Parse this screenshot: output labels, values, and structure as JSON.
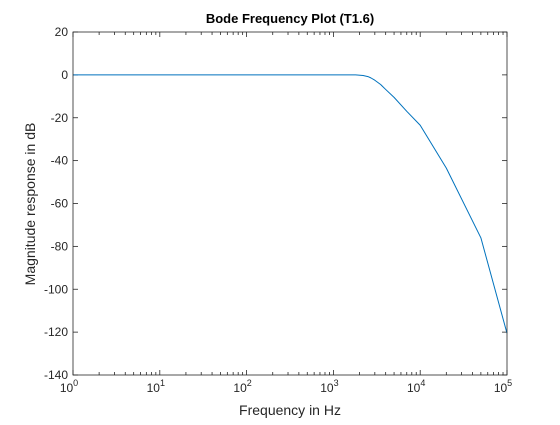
{
  "chart_data": {
    "type": "line",
    "title": "Bode Frequency Plot (T1.6)",
    "xlabel": "Frequency in Hz",
    "ylabel": "Magnitude response in dB",
    "xscale": "log",
    "xlim": [
      1,
      100000
    ],
    "ylim": [
      -140,
      20
    ],
    "x_ticks": [
      {
        "value": 1,
        "base": "10",
        "exp": "0"
      },
      {
        "value": 10,
        "base": "10",
        "exp": "1"
      },
      {
        "value": 100,
        "base": "10",
        "exp": "2"
      },
      {
        "value": 1000,
        "base": "10",
        "exp": "3"
      },
      {
        "value": 10000,
        "base": "10",
        "exp": "4"
      },
      {
        "value": 100000,
        "base": "10",
        "exp": "5"
      }
    ],
    "y_ticks": [
      20,
      0,
      -20,
      -40,
      -60,
      -80,
      -100,
      -120,
      -140
    ],
    "grid": false,
    "box": true,
    "series": [
      {
        "color": "#0072bd",
        "x": [
          1,
          10,
          100,
          1000,
          1800,
          2200,
          2500,
          2700,
          3000,
          3500,
          4000,
          5000,
          7000,
          10000,
          20000,
          50000,
          100000
        ],
        "y": [
          0,
          0,
          0,
          0,
          0,
          -0.3,
          -0.8,
          -1.4,
          -2.5,
          -4.5,
          -6.8,
          -10.5,
          -17,
          -23.5,
          -43.5,
          -76,
          -120.5
        ]
      }
    ]
  }
}
